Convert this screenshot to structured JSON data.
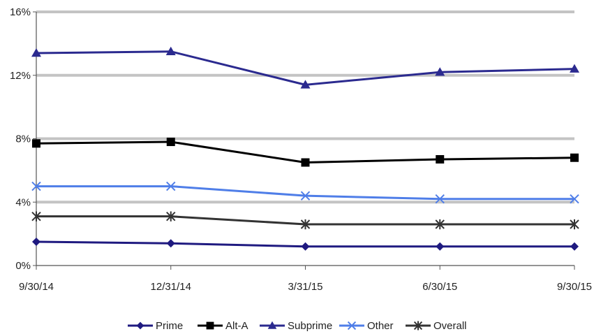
{
  "chart_data": {
    "type": "line",
    "categories": [
      "9/30/14",
      "12/31/14",
      "3/31/15",
      "6/30/15",
      "9/30/15"
    ],
    "ylim": [
      0,
      16
    ],
    "yticks": [
      0,
      4,
      8,
      12,
      16
    ],
    "ytick_labels": [
      "0%",
      "4%",
      "8%",
      "12%",
      "16%"
    ],
    "grid": "horizontal, light gray",
    "legend_position": "bottom",
    "series": [
      {
        "name": "Prime",
        "values": [
          1.5,
          1.4,
          1.2,
          1.2,
          1.2
        ],
        "color": "#1f1a80",
        "marker": "diamond"
      },
      {
        "name": "Alt-A",
        "values": [
          7.7,
          7.8,
          6.5,
          6.7,
          6.8
        ],
        "color": "#000000",
        "marker": "square"
      },
      {
        "name": "Subprime",
        "values": [
          13.4,
          13.5,
          11.4,
          12.2,
          12.4
        ],
        "color": "#2b2a8f",
        "marker": "triangle"
      },
      {
        "name": "Other",
        "values": [
          5.0,
          5.0,
          4.4,
          4.2,
          4.2
        ],
        "color": "#4f7ee8",
        "marker": "x"
      },
      {
        "name": "Overall",
        "values": [
          3.1,
          3.1,
          2.6,
          2.6,
          2.6
        ],
        "color": "#333333",
        "marker": "star"
      }
    ]
  }
}
